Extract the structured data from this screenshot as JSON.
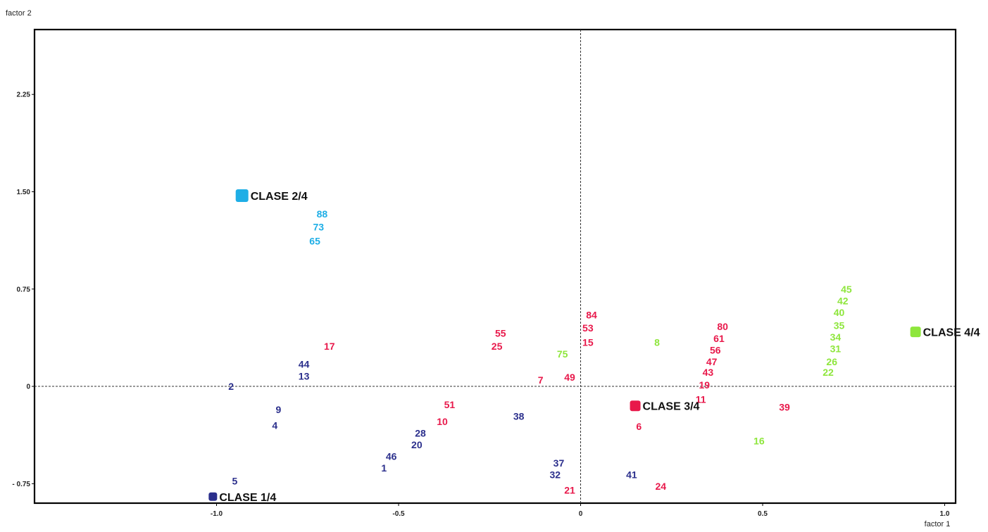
{
  "chart_data": {
    "type": "scatter",
    "xlabel": "factor 1",
    "ylabel": "factor 2",
    "xlim": [
      -1.5,
      1.03
    ],
    "ylim": [
      -0.9,
      2.75
    ],
    "x_ticks": [
      {
        "value": -1.0,
        "label": "-1.0"
      },
      {
        "value": -0.5,
        "label": "-0.5"
      },
      {
        "value": 0,
        "label": "0"
      },
      {
        "value": 0.5,
        "label": "0.5"
      },
      {
        "value": 1.0,
        "label": "1.0"
      }
    ],
    "y_ticks": [
      {
        "value": 2.25,
        "label": "2.25"
      },
      {
        "value": 1.5,
        "label": "1.50"
      },
      {
        "value": 0.75,
        "label": "0.75"
      },
      {
        "value": 0,
        "label": "0"
      },
      {
        "value": -0.75,
        "label": "- 0.75"
      }
    ],
    "class_centroids": [
      {
        "label": "CLASE 1/4",
        "x": -1.01,
        "y": -0.85,
        "color": "#2b2f8c"
      },
      {
        "label": "CLASE 2/4",
        "x": -0.93,
        "y": 1.47,
        "color": "#1eaee6"
      },
      {
        "label": "CLASE 3/4",
        "x": 0.15,
        "y": -0.15,
        "color": "#e8194b"
      },
      {
        "label": "CLASE 4/4",
        "x": 0.92,
        "y": 0.42,
        "color": "#8ee63c"
      }
    ],
    "series": [
      {
        "color": "#2b2f8c",
        "points": [
          {
            "label": "2",
            "x": -0.96,
            "y": 0.0
          },
          {
            "label": "44",
            "x": -0.76,
            "y": 0.17
          },
          {
            "label": "13",
            "x": -0.76,
            "y": 0.08
          },
          {
            "label": "9",
            "x": -0.83,
            "y": -0.18
          },
          {
            "label": "4",
            "x": -0.84,
            "y": -0.3
          },
          {
            "label": "5",
            "x": -0.95,
            "y": -0.73
          },
          {
            "label": "46",
            "x": -0.52,
            "y": -0.54
          },
          {
            "label": "1",
            "x": -0.54,
            "y": -0.63
          },
          {
            "label": "28",
            "x": -0.44,
            "y": -0.36
          },
          {
            "label": "20",
            "x": -0.45,
            "y": -0.45
          },
          {
            "label": "38",
            "x": -0.17,
            "y": -0.23
          },
          {
            "label": "37",
            "x": -0.06,
            "y": -0.59
          },
          {
            "label": "32",
            "x": -0.07,
            "y": -0.68
          },
          {
            "label": "41",
            "x": 0.14,
            "y": -0.68
          }
        ]
      },
      {
        "color": "#1eaee6",
        "points": [
          {
            "label": "88",
            "x": -0.71,
            "y": 1.33
          },
          {
            "label": "73",
            "x": -0.72,
            "y": 1.23
          },
          {
            "label": "65",
            "x": -0.73,
            "y": 1.12
          }
        ]
      },
      {
        "color": "#e8194b",
        "points": [
          {
            "label": "17",
            "x": -0.69,
            "y": 0.31
          },
          {
            "label": "55",
            "x": -0.22,
            "y": 0.41
          },
          {
            "label": "25",
            "x": -0.23,
            "y": 0.31
          },
          {
            "label": "84",
            "x": 0.03,
            "y": 0.55
          },
          {
            "label": "53",
            "x": 0.02,
            "y": 0.45
          },
          {
            "label": "15",
            "x": 0.02,
            "y": 0.34
          },
          {
            "label": "7",
            "x": -0.11,
            "y": 0.05
          },
          {
            "label": "49",
            "x": -0.03,
            "y": 0.07
          },
          {
            "label": "51",
            "x": -0.36,
            "y": -0.14
          },
          {
            "label": "10",
            "x": -0.38,
            "y": -0.27
          },
          {
            "label": "6",
            "x": 0.16,
            "y": -0.31
          },
          {
            "label": "21",
            "x": -0.03,
            "y": -0.8
          },
          {
            "label": "24",
            "x": 0.22,
            "y": -0.77
          },
          {
            "label": "80",
            "x": 0.39,
            "y": 0.46
          },
          {
            "label": "61",
            "x": 0.38,
            "y": 0.37
          },
          {
            "label": "56",
            "x": 0.37,
            "y": 0.28
          },
          {
            "label": "47",
            "x": 0.36,
            "y": 0.19
          },
          {
            "label": "43",
            "x": 0.35,
            "y": 0.11
          },
          {
            "label": "19",
            "x": 0.34,
            "y": 0.01
          },
          {
            "label": "11",
            "x": 0.33,
            "y": -0.1
          },
          {
            "label": "39",
            "x": 0.56,
            "y": -0.16
          }
        ]
      },
      {
        "color": "#8ee63c",
        "points": [
          {
            "label": "75",
            "x": -0.05,
            "y": 0.25
          },
          {
            "label": "8",
            "x": 0.21,
            "y": 0.34
          },
          {
            "label": "16",
            "x": 0.49,
            "y": -0.42
          },
          {
            "label": "45",
            "x": 0.73,
            "y": 0.75
          },
          {
            "label": "42",
            "x": 0.72,
            "y": 0.66
          },
          {
            "label": "40",
            "x": 0.71,
            "y": 0.57
          },
          {
            "label": "35",
            "x": 0.71,
            "y": 0.47
          },
          {
            "label": "34",
            "x": 0.7,
            "y": 0.38
          },
          {
            "label": "31",
            "x": 0.7,
            "y": 0.29
          },
          {
            "label": "26",
            "x": 0.69,
            "y": 0.19
          },
          {
            "label": "22",
            "x": 0.68,
            "y": 0.11
          }
        ]
      }
    ]
  }
}
